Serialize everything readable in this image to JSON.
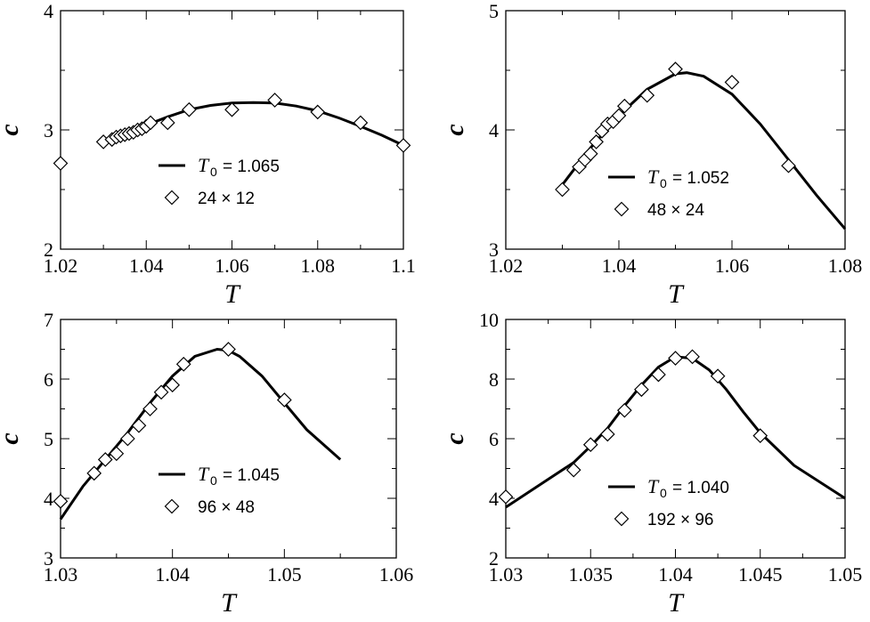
{
  "chart_data": [
    {
      "type": "scatter",
      "xlabel": "T",
      "ylabel": "c",
      "xlim": [
        1.02,
        1.1
      ],
      "ylim": [
        2,
        4
      ],
      "xticks": [
        "1.02",
        "1.04",
        "1.06",
        "1.08",
        "1.1"
      ],
      "yticks": [
        "2",
        "3",
        "4"
      ],
      "legend": {
        "line_symbol": "T",
        "line_subscript": "0",
        "line_value": "= 1.065",
        "marker_label": "24 × 12"
      },
      "fit_peak": {
        "T0": 1.065
      },
      "fit_curve": {
        "x": [
          1.03,
          1.035,
          1.04,
          1.045,
          1.05,
          1.055,
          1.06,
          1.065,
          1.07,
          1.075,
          1.08,
          1.085,
          1.09,
          1.095,
          1.1
        ],
        "y": [
          2.9,
          2.97,
          3.04,
          3.11,
          3.17,
          3.205,
          3.225,
          3.23,
          3.225,
          3.2,
          3.16,
          3.1,
          3.03,
          2.955,
          2.87
        ]
      },
      "points": {
        "x": [
          1.02,
          1.03,
          1.032,
          1.033,
          1.034,
          1.035,
          1.036,
          1.037,
          1.038,
          1.039,
          1.04,
          1.041,
          1.045,
          1.05,
          1.06,
          1.07,
          1.08,
          1.09,
          1.1
        ],
        "y": [
          2.72,
          2.9,
          2.92,
          2.94,
          2.95,
          2.96,
          2.97,
          2.98,
          3.0,
          3.01,
          3.03,
          3.06,
          3.06,
          3.17,
          3.17,
          3.25,
          3.15,
          3.06,
          2.87
        ]
      }
    },
    {
      "type": "scatter",
      "xlabel": "T",
      "ylabel": "c",
      "xlim": [
        1.02,
        1.08
      ],
      "ylim": [
        3,
        5
      ],
      "xticks": [
        "1.02",
        "1.04",
        "1.06",
        "1.08"
      ],
      "yticks": [
        "3",
        "4",
        "5"
      ],
      "legend": {
        "line_symbol": "T",
        "line_subscript": "0",
        "line_value": "= 1.052",
        "marker_label": "48 × 24"
      },
      "fit_peak": {
        "T0": 1.052
      },
      "fit_curve": {
        "x": [
          1.03,
          1.035,
          1.04,
          1.045,
          1.05,
          1.052,
          1.055,
          1.06,
          1.065,
          1.07,
          1.075,
          1.08
        ],
        "y": [
          3.54,
          3.85,
          4.12,
          4.34,
          4.47,
          4.48,
          4.45,
          4.3,
          4.05,
          3.75,
          3.45,
          3.17
        ]
      },
      "points": {
        "x": [
          1.03,
          1.033,
          1.034,
          1.035,
          1.036,
          1.037,
          1.038,
          1.039,
          1.04,
          1.041,
          1.045,
          1.05,
          1.06,
          1.07
        ],
        "y": [
          3.5,
          3.69,
          3.75,
          3.8,
          3.9,
          3.99,
          4.05,
          4.07,
          4.12,
          4.2,
          4.29,
          4.51,
          4.4,
          3.7
        ]
      }
    },
    {
      "type": "scatter",
      "xlabel": "T",
      "ylabel": "c",
      "xlim": [
        1.03,
        1.06
      ],
      "ylim": [
        3,
        7
      ],
      "xticks": [
        "1.03",
        "1.04",
        "1.05",
        "1.06"
      ],
      "yticks": [
        "3",
        "4",
        "5",
        "6",
        "7"
      ],
      "legend": {
        "line_symbol": "T",
        "line_subscript": "0",
        "line_value": "= 1.045",
        "marker_label": "96 × 48"
      },
      "fit_peak": {
        "T0": 1.045
      },
      "fit_curve": {
        "x": [
          1.03,
          1.032,
          1.034,
          1.036,
          1.038,
          1.04,
          1.042,
          1.044,
          1.045,
          1.046,
          1.048,
          1.05,
          1.052,
          1.055
        ],
        "y": [
          3.65,
          4.2,
          4.65,
          5.1,
          5.6,
          6.05,
          6.38,
          6.5,
          6.48,
          6.38,
          6.05,
          5.6,
          5.15,
          4.65
        ]
      },
      "points": {
        "x": [
          1.03,
          1.033,
          1.034,
          1.035,
          1.036,
          1.037,
          1.038,
          1.039,
          1.04,
          1.041,
          1.045,
          1.05
        ],
        "y": [
          3.95,
          4.42,
          4.65,
          4.75,
          5.0,
          5.22,
          5.5,
          5.78,
          5.9,
          6.25,
          6.5,
          5.65
        ]
      }
    },
    {
      "type": "scatter",
      "xlabel": "T",
      "ylabel": "c",
      "xlim": [
        1.03,
        1.05
      ],
      "ylim": [
        2,
        10
      ],
      "xticks": [
        "1.03",
        "1.035",
        "1.04",
        "1.045",
        "1.05"
      ],
      "yticks": [
        "2",
        "4",
        "6",
        "8",
        "10"
      ],
      "legend": {
        "line_symbol": "T",
        "line_subscript": "0",
        "line_value": "= 1.040",
        "marker_label": "192 × 96"
      },
      "fit_peak": {
        "T0": 1.04
      },
      "fit_curve": {
        "x": [
          1.03,
          1.032,
          1.034,
          1.035,
          1.036,
          1.037,
          1.038,
          1.039,
          1.04,
          1.041,
          1.042,
          1.043,
          1.044,
          1.045,
          1.047,
          1.05
        ],
        "y": [
          3.7,
          4.45,
          5.2,
          5.75,
          6.35,
          7.1,
          7.8,
          8.4,
          8.75,
          8.7,
          8.3,
          7.65,
          6.9,
          6.2,
          5.1,
          4.0
        ]
      },
      "points": {
        "x": [
          1.03,
          1.034,
          1.035,
          1.036,
          1.037,
          1.038,
          1.039,
          1.04,
          1.041,
          1.0425,
          1.045
        ],
        "y": [
          4.05,
          4.95,
          5.8,
          6.15,
          6.95,
          7.65,
          8.15,
          8.7,
          8.75,
          8.1,
          6.1
        ]
      }
    }
  ]
}
